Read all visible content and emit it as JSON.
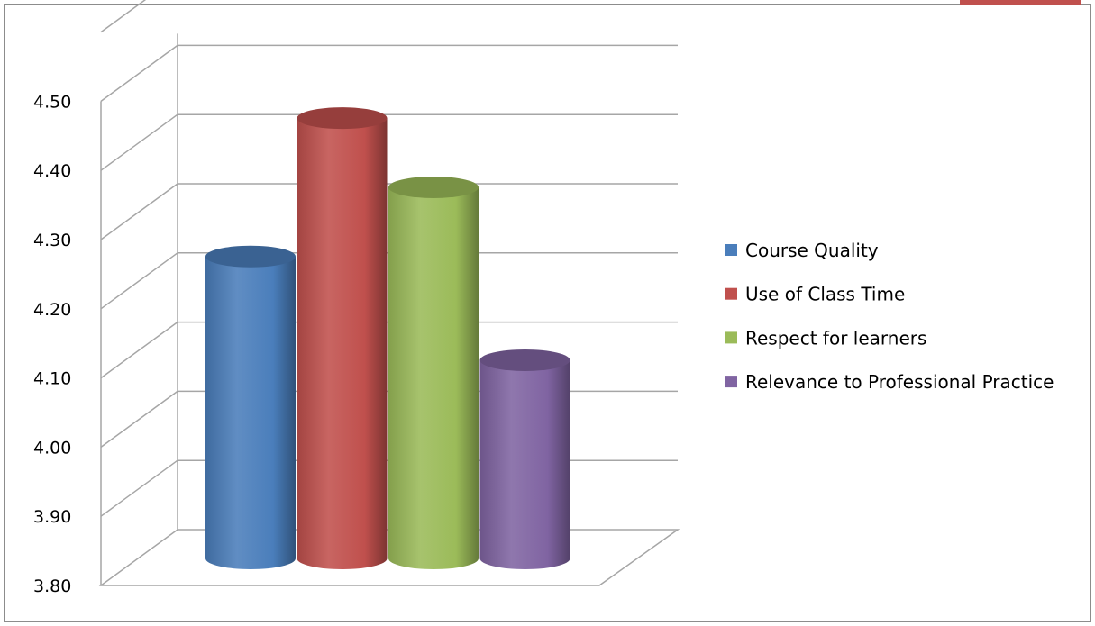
{
  "chart_data": {
    "type": "bar",
    "style": "3d-cylinder",
    "title": "",
    "xlabel": "",
    "ylabel": "",
    "ylim": [
      3.8,
      4.5
    ],
    "yticks": [
      "3.80",
      "3.90",
      "4.00",
      "4.10",
      "4.20",
      "4.30",
      "4.40",
      "4.50"
    ],
    "grid": true,
    "legend_position": "right",
    "series": [
      {
        "name": "Course Quality",
        "value": 4.23,
        "color": "#4a7ebb"
      },
      {
        "name": "Use of Class Time",
        "value": 4.43,
        "color": "#c0504d"
      },
      {
        "name": "Respect for learners",
        "value": 4.33,
        "color": "#9bbb59"
      },
      {
        "name": "Relevance to Professional Practice",
        "value": 4.08,
        "color": "#8064a2"
      }
    ]
  }
}
